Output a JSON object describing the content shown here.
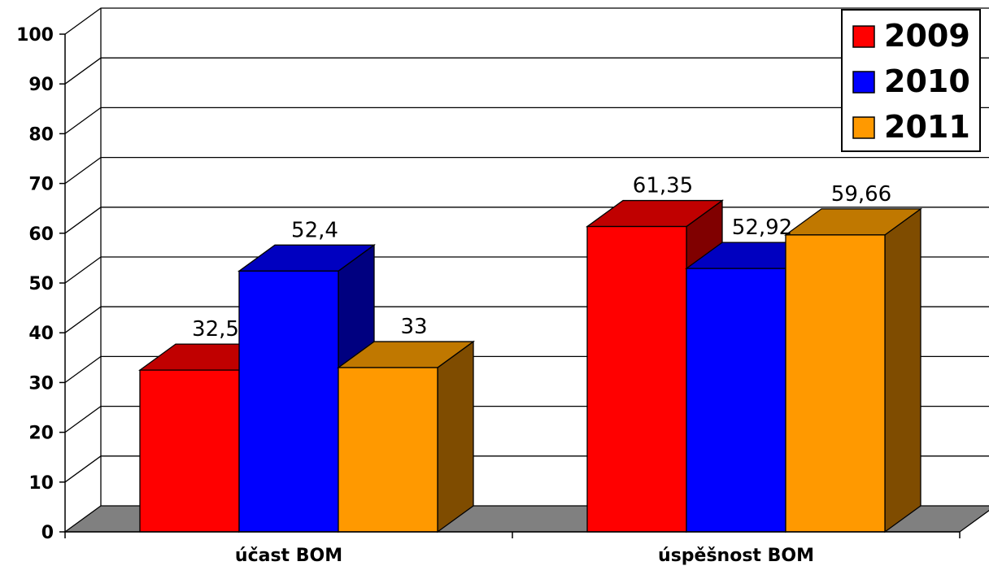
{
  "chart_data": {
    "type": "bar",
    "three_d": true,
    "categories": [
      "účast BOM",
      "úspěšnost BOM"
    ],
    "series": [
      {
        "name": "2009",
        "values": [
          32.5,
          61.35
        ],
        "labels": [
          "32,5",
          "61,35"
        ],
        "color": "#ff0000",
        "top_color": "#c00000",
        "side_color": "#800000"
      },
      {
        "name": "2010",
        "values": [
          52.4,
          52.92
        ],
        "labels": [
          "52,4",
          "52,92"
        ],
        "color": "#0000ff",
        "top_color": "#0000c0",
        "side_color": "#000080"
      },
      {
        "name": "2011",
        "values": [
          33,
          59.66
        ],
        "labels": [
          "33",
          "59,66"
        ],
        "color": "#ff9900",
        "top_color": "#c07800",
        "side_color": "#7f4c00"
      }
    ],
    "ylim": [
      0,
      100
    ],
    "yticks": [
      "0",
      "10",
      "20",
      "30",
      "40",
      "50",
      "60",
      "70",
      "80",
      "90",
      "100"
    ],
    "grid": true,
    "legend_position": "top-right",
    "floor_color": "#808080",
    "title": "",
    "xlabel": "",
    "ylabel": ""
  }
}
